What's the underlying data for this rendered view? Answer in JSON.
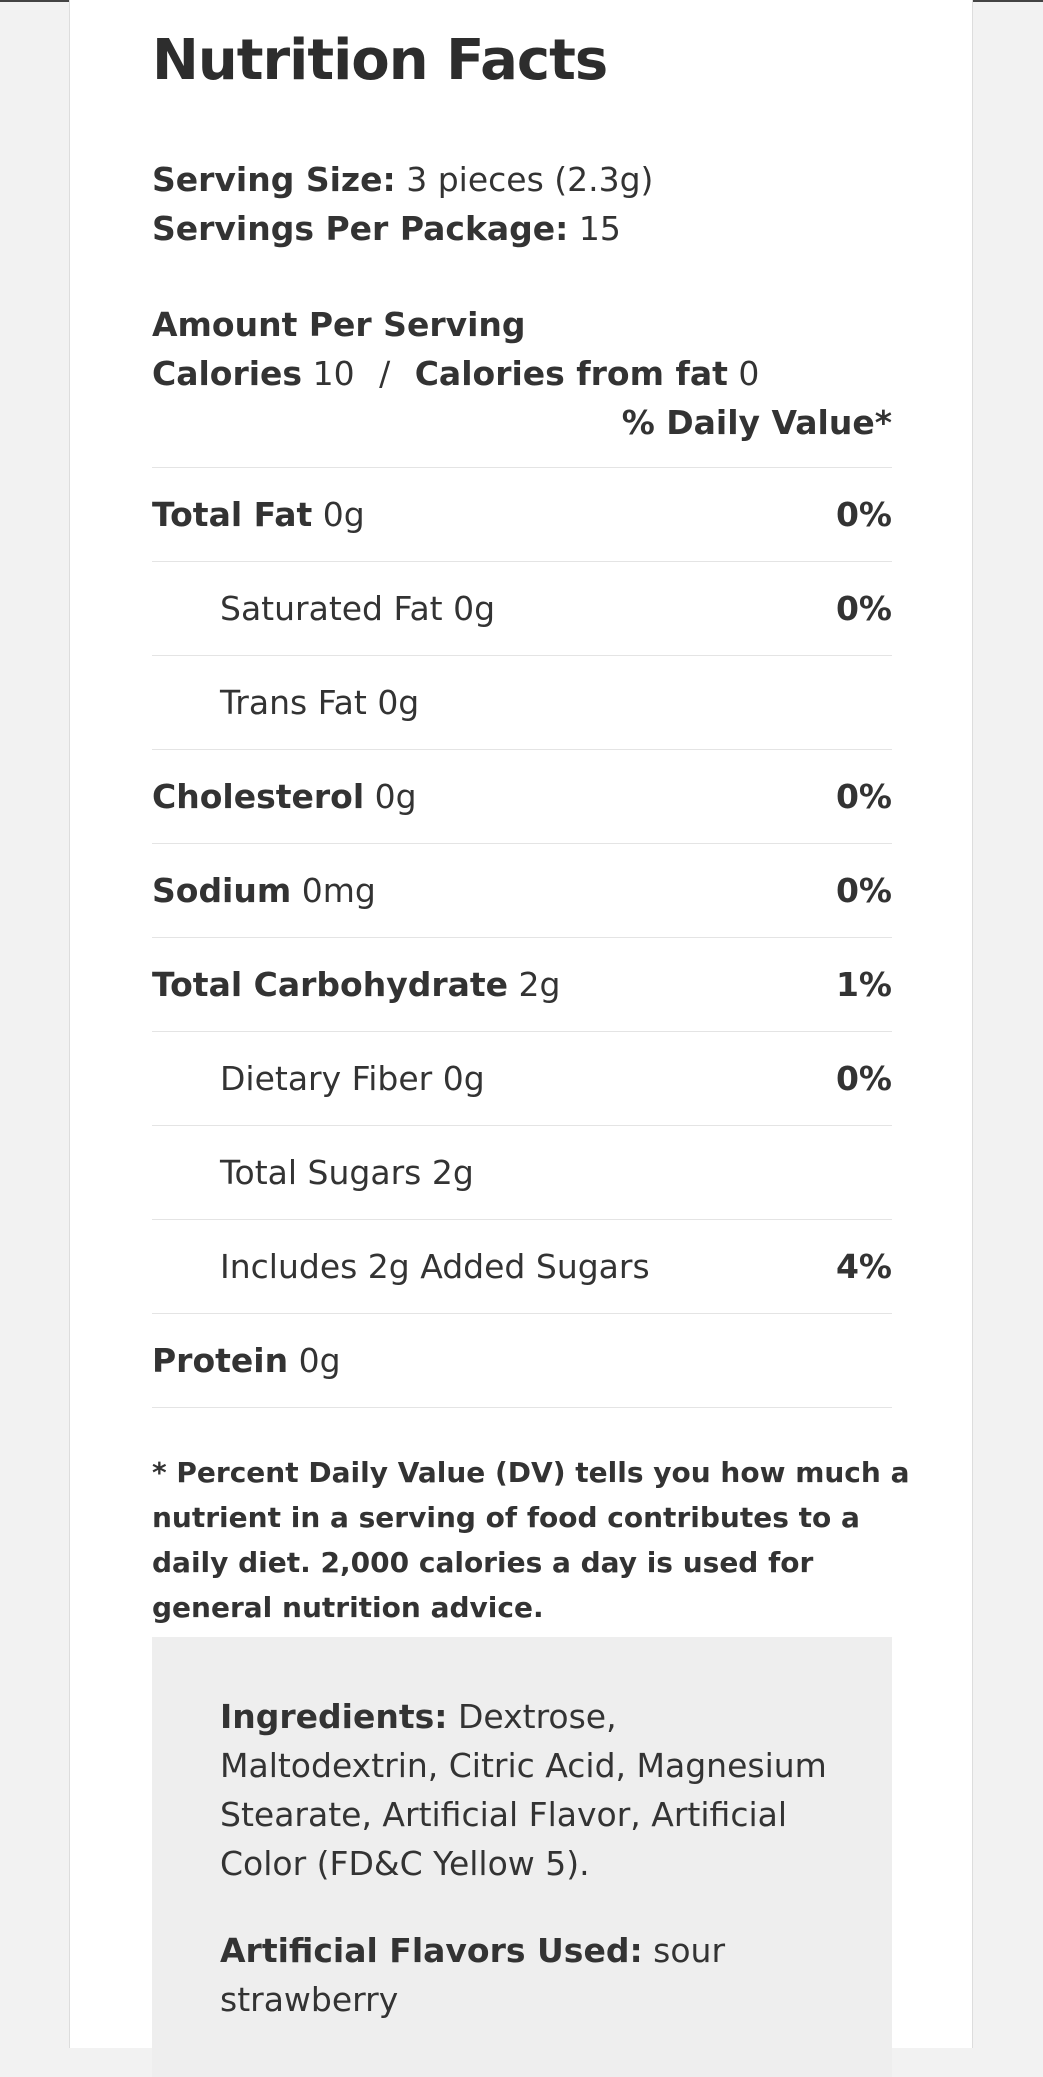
{
  "title": "Nutrition Facts",
  "serving": {
    "size_label": "Serving Size:",
    "size_value": "3 pieces (2.3g)",
    "per_package_label": "Servings Per Package:",
    "per_package_value": "15"
  },
  "amount": {
    "heading": "Amount Per Serving",
    "calories_label": "Calories",
    "calories_value": "10",
    "separator": "/",
    "fat_calories_label": "Calories from fat",
    "fat_calories_value": "0",
    "dv_header": "% Daily Value*"
  },
  "nutrients": [
    {
      "name": "Total Fat",
      "amount": "0g",
      "dv": "0%"
    },
    {
      "name": "Saturated Fat",
      "amount": "0g",
      "dv": "0%"
    },
    {
      "name": "Trans Fat",
      "amount": "0g",
      "dv": ""
    },
    {
      "name": "Cholesterol",
      "amount": "0g",
      "dv": "0%"
    },
    {
      "name": "Sodium",
      "amount": "0mg",
      "dv": "0%"
    },
    {
      "name": "Total Carbohydrate",
      "amount": "2g",
      "dv": "1%"
    },
    {
      "name": "Dietary Fiber",
      "amount": "0g",
      "dv": "0%"
    },
    {
      "name": "Total Sugars",
      "amount": "2g",
      "dv": ""
    },
    {
      "name": "Includes 2g Added Sugars",
      "amount": "",
      "dv": "4%"
    },
    {
      "name": "Protein",
      "amount": "0g",
      "dv": ""
    }
  ],
  "footnote": "* Percent Daily Value (DV) tells you how much a nutrient in a serving of food contributes to a daily diet. 2,000 calories a day is used for general nutrition advice.",
  "ingredients": {
    "label": "Ingredients:",
    "text": "Dextrose, Maltodextrin, Citric Acid, Magnesium Stearate, Artificial Flavor, Artificial Color (FD&C Yellow 5).",
    "flavors_label": "Artificial Flavors Used:",
    "flavors_text": "sour strawberry"
  },
  "colors": {
    "page_bg": "#f2f2f2",
    "card_bg": "#ffffff",
    "text": "#333333",
    "divider": "#e4e4e4",
    "ingredients_bg": "#eeeeee"
  }
}
